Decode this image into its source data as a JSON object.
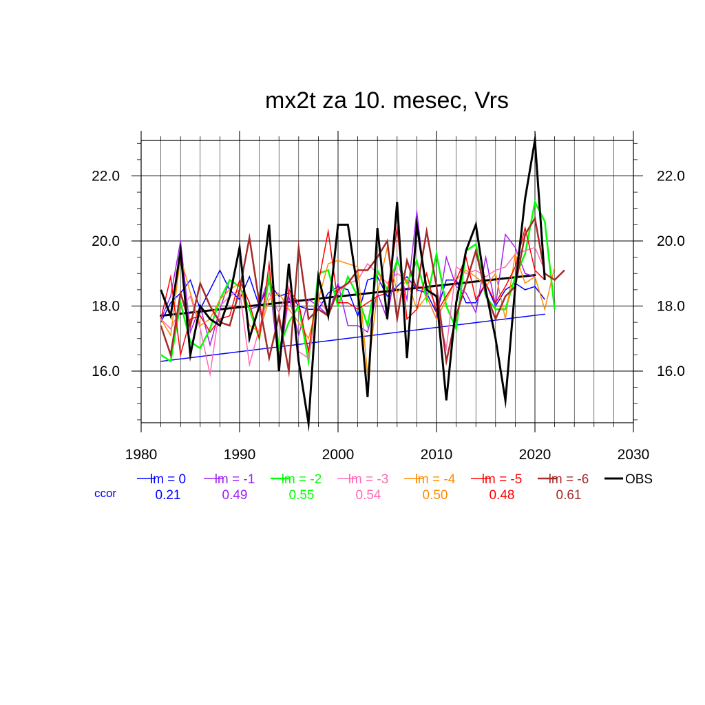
{
  "chart_data": {
    "type": "line",
    "title": "mx2t za 10. mesec, Vrs",
    "xlabel": "",
    "ylabel": "",
    "xlim": [
      1980,
      2030
    ],
    "ylim": [
      14.4,
      23.1
    ],
    "xticks": [
      1980,
      1990,
      2000,
      2010,
      2020,
      2030
    ],
    "xtick_labels": [
      "1980",
      "1990",
      "2000",
      "2010",
      "2020",
      "2030"
    ],
    "yticks": [
      16.0,
      18.0,
      20.0,
      22.0
    ],
    "ytick_labels": [
      "16.0",
      "18.0",
      "20.0",
      "22.0"
    ],
    "grid": true,
    "ccor_label": "ccor",
    "series": [
      {
        "name": "lm = 0",
        "color": "#0000ff",
        "width": 1.5,
        "ccor": "0.21",
        "x0": 1982,
        "values": [
          17.5,
          18.1,
          18.4,
          18.8,
          17.9,
          18.5,
          19.1,
          18.5,
          18.2,
          18.9,
          18.0,
          18.7,
          18.3,
          18.4,
          18.0,
          17.9,
          17.9,
          18.4,
          18.6,
          18.5,
          17.7,
          18.8,
          18.9,
          18.3,
          18.6,
          18.9,
          18.5,
          18.4,
          17.8,
          18.8,
          18.8,
          18.1,
          18.1,
          18.7,
          18.0,
          18.5,
          18.7,
          18.5,
          18.6,
          18.2
        ]
      },
      {
        "name": "lm = -1",
        "color": "#a020f0",
        "width": 1.5,
        "ccor": "0.49",
        "x0": 1982,
        "values": [
          17.6,
          18.3,
          20.0,
          17.2,
          18.0,
          16.8,
          17.9,
          18.8,
          18.6,
          17.9,
          18.0,
          18.9,
          16.1,
          18.3,
          17.1,
          18.2,
          18.0,
          17.7,
          18.7,
          17.4,
          17.4,
          17.2,
          18.4,
          17.6,
          19.5,
          18.2,
          20.9,
          18.3,
          17.6,
          19.5,
          18.6,
          18.4,
          17.8,
          19.5,
          18.0,
          20.2,
          19.8,
          19.0,
          18.9
        ]
      },
      {
        "name": "lm = -2",
        "color": "#00ff00",
        "width": 2.5,
        "ccor": "0.55",
        "x0": 1982,
        "values": [
          16.5,
          16.3,
          18.1,
          16.9,
          16.7,
          17.3,
          18.2,
          18.8,
          18.6,
          17.9,
          17.0,
          18.9,
          16.7,
          17.5,
          18.0,
          16.3,
          19.0,
          19.1,
          18.0,
          18.9,
          18.3,
          17.4,
          19.1,
          18.5,
          19.4,
          18.7,
          19.4,
          18.2,
          19.6,
          18.0,
          17.3,
          19.7,
          19.9,
          18.3,
          17.9,
          17.9,
          18.9,
          19.6,
          21.2,
          20.6,
          17.9
        ]
      },
      {
        "name": "lm = -3",
        "color": "#ff69b4",
        "width": 1.5,
        "ccor": "0.54",
        "x0": 1982,
        "values": [
          17.6,
          17.3,
          17.9,
          18.3,
          17.3,
          15.9,
          18.0,
          18.3,
          18.5,
          16.2,
          17.3,
          18.4,
          17.8,
          18.6,
          16.6,
          16.4,
          18.2,
          17.8,
          18.4,
          18.7,
          18.8,
          19.3,
          19.0,
          18.7,
          19.0,
          18.8,
          18.6,
          18.6,
          18.0,
          16.7,
          19.2,
          19.0,
          19.1,
          18.9,
          19.1,
          19.2,
          19.6,
          19.7,
          19.8,
          19.1
        ]
      },
      {
        "name": "lm = -4",
        "color": "#ff8c00",
        "width": 1.5,
        "ccor": "0.50",
        "x0": 1982,
        "values": [
          17.6,
          17.1,
          19.5,
          18.4,
          17.4,
          17.6,
          18.2,
          18.5,
          18.7,
          17.4,
          17.2,
          18.2,
          18.4,
          17.9,
          17.5,
          17.0,
          18.2,
          19.3,
          19.4,
          19.3,
          19.2,
          15.9,
          18.4,
          19.8,
          18.4,
          18.8,
          17.9,
          18.3,
          17.6,
          18.2,
          18.8,
          19.1,
          18.9,
          18.6,
          19.0,
          17.6,
          19.6,
          18.7,
          18.9,
          17.9,
          19.2
        ]
      },
      {
        "name": "lm = -5",
        "color": "#ff0000",
        "width": 1.5,
        "ccor": "0.48",
        "x0": 1982,
        "values": [
          17.6,
          18.9,
          16.5,
          17.6,
          17.7,
          17.2,
          17.6,
          17.7,
          18.8,
          18.1,
          17.0,
          19.3,
          16.3,
          18.5,
          18.1,
          16.6,
          18.7,
          20.3,
          18.1,
          18.1,
          17.9,
          18.1,
          18.3,
          18.4,
          20.4,
          17.6,
          17.9,
          19.0,
          17.8,
          18.3,
          18.8,
          19.5,
          18.2,
          18.7,
          18.1,
          18.6,
          19.2,
          20.4,
          19.1,
          18.8
        ]
      },
      {
        "name": "lm = -6",
        "color": "#a52a2a",
        "width": 2.5,
        "ccor": "0.61",
        "x0": 1982,
        "values": [
          17.4,
          16.5,
          18.4,
          17.4,
          18.7,
          18.0,
          17.5,
          17.4,
          18.5,
          20.1,
          18.1,
          16.4,
          17.7,
          16.0,
          19.8,
          17.6,
          17.9,
          17.7,
          18.5,
          18.7,
          19.1,
          19.1,
          19.5,
          20.0,
          17.6,
          19.4,
          18.5,
          20.3,
          18.6,
          16.3,
          17.7,
          18.7,
          19.7,
          18.4,
          17.6,
          18.3,
          18.6,
          20.2,
          20.7,
          19.0,
          18.8,
          19.1
        ]
      },
      {
        "name": "OBS",
        "color": "#000000",
        "width": 3,
        "ccor": "",
        "x0": 1982,
        "values": [
          18.5,
          17.7,
          19.7,
          16.5,
          18.0,
          17.6,
          17.4,
          18.3,
          19.8,
          17.0,
          18.0,
          20.5,
          16.0,
          19.3,
          16.3,
          14.4,
          18.9,
          17.7,
          20.5,
          20.5,
          18.5,
          15.2,
          20.4,
          17.6,
          21.2,
          16.4,
          20.5,
          18.5,
          18.3,
          15.1,
          18.1,
          19.7,
          20.5,
          18.5,
          17.0,
          15.1,
          18.6,
          21.3,
          23.1,
          18.8
        ]
      }
    ],
    "trend_lines": [
      {
        "series": "lm = 0",
        "color": "#0000ff",
        "width": 1.5,
        "x": [
          1982,
          2021
        ],
        "y": [
          16.3,
          17.75
        ]
      },
      {
        "series": "OBS",
        "color": "#000000",
        "width": 3,
        "x": [
          1982,
          2020
        ],
        "y": [
          17.7,
          18.95
        ]
      }
    ]
  }
}
